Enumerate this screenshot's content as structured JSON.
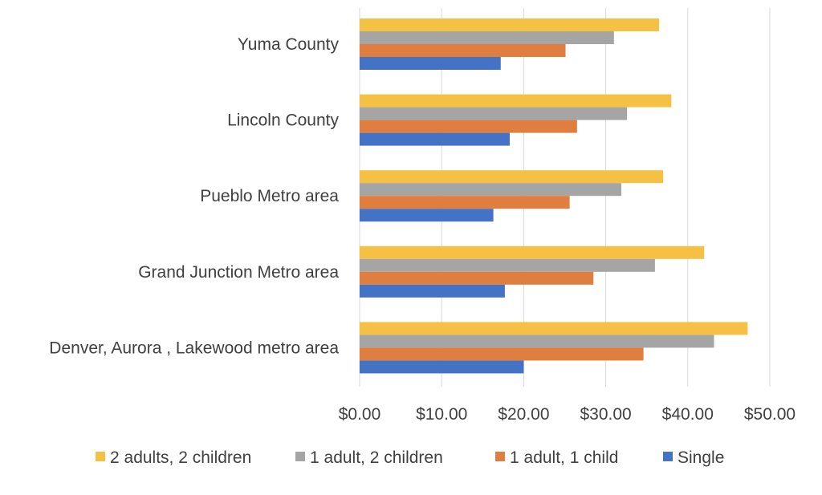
{
  "chart_data": {
    "type": "bar",
    "orientation": "horizontal",
    "categories": [
      "Yuma County",
      "Lincoln County",
      "Pueblo Metro area",
      "Grand Junction Metro area",
      "Denver, Aurora , Lakewood metro area"
    ],
    "series": [
      {
        "name": "2 adults, 2 children",
        "color": "#F4C144",
        "values": [
          36.5,
          38.0,
          37.0,
          42.0,
          47.3
        ]
      },
      {
        "name": "1 adult, 2 children",
        "color": "#A5A5A5",
        "values": [
          31.0,
          32.6,
          31.9,
          36.0,
          43.2
        ]
      },
      {
        "name": "1 adult, 1 child",
        "color": "#E07E3F",
        "values": [
          25.1,
          26.5,
          25.6,
          28.5,
          34.6
        ]
      },
      {
        "name": "Single",
        "color": "#4472C4",
        "values": [
          17.2,
          18.3,
          16.3,
          17.7,
          20.0
        ]
      }
    ],
    "x_ticks": [
      "$0.00",
      "$10.00",
      "$20.00",
      "$30.00",
      "$40.00",
      "$50.00"
    ],
    "xlim": [
      0,
      50
    ],
    "title": "",
    "xlabel": "",
    "ylabel": "",
    "grid": "vertical",
    "legend_position": "bottom"
  }
}
